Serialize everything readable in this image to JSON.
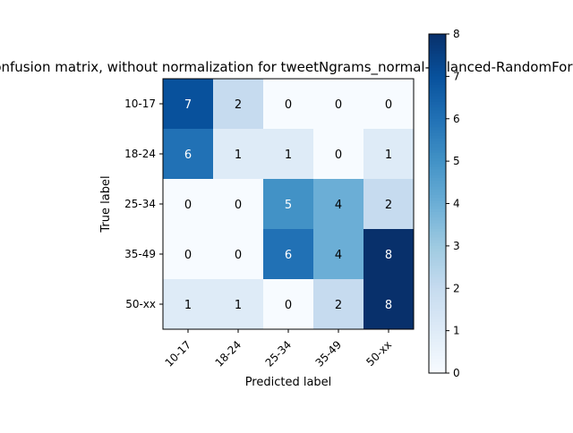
{
  "chart_data": {
    "type": "heatmap",
    "title": "Confusion matrix, without normalization for tweetNgrams_normal-balanced-RandomForest",
    "xlabel": "Predicted label",
    "ylabel": "True label",
    "x_categories": [
      "10-17",
      "18-24",
      "25-34",
      "35-49",
      "50-xx"
    ],
    "y_categories": [
      "10-17",
      "18-24",
      "25-34",
      "35-49",
      "50-xx"
    ],
    "matrix": [
      [
        7,
        2,
        0,
        0,
        0
      ],
      [
        6,
        1,
        1,
        0,
        1
      ],
      [
        0,
        0,
        5,
        4,
        2
      ],
      [
        0,
        0,
        6,
        4,
        8
      ],
      [
        1,
        1,
        0,
        2,
        8
      ]
    ],
    "colorbar": {
      "min": 0,
      "max": 8,
      "ticks": [
        "0",
        "1",
        "2",
        "3",
        "4",
        "5",
        "6",
        "7",
        "8"
      ]
    },
    "colormap": "Blues",
    "colormap_stops": [
      "#f7fbff",
      "#deebf7",
      "#c6dbef",
      "#9ecae1",
      "#6baed6",
      "#4292c6",
      "#2171b5",
      "#08519c",
      "#08306b"
    ]
  }
}
